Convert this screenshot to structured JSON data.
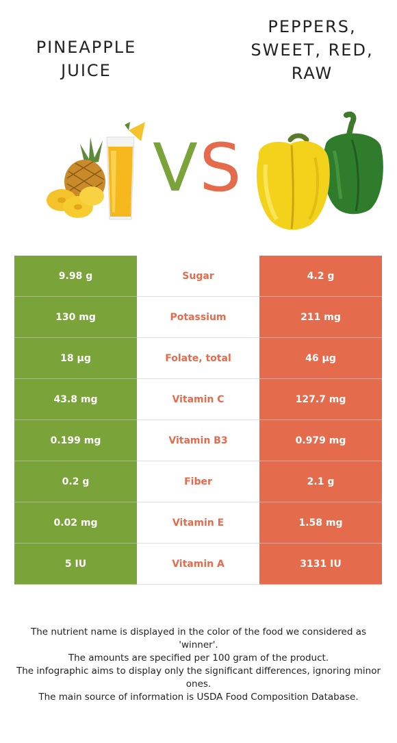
{
  "header": {
    "left_title_line1": "PINEAPPLE",
    "left_title_line2": "JUICE",
    "right_title_line1": "PEPPERS,",
    "right_title_line2": "SWEET, RED,",
    "right_title_line3": "RAW",
    "vs_v": "V",
    "vs_s": "S"
  },
  "colors": {
    "left_food": "#7aa33a",
    "right_food": "#e46b4c"
  },
  "table": {
    "rows": [
      {
        "left": "9.98 g",
        "nutrient": "Sugar",
        "right": "4.2 g",
        "winner": "right"
      },
      {
        "left": "130 mg",
        "nutrient": "Potassium",
        "right": "211 mg",
        "winner": "right"
      },
      {
        "left": "18 µg",
        "nutrient": "Folate, total",
        "right": "46 µg",
        "winner": "right"
      },
      {
        "left": "43.8 mg",
        "nutrient": "Vitamin C",
        "right": "127.7 mg",
        "winner": "right"
      },
      {
        "left": "0.199 mg",
        "nutrient": "Vitamin B3",
        "right": "0.979 mg",
        "winner": "right"
      },
      {
        "left": "0.2 g",
        "nutrient": "Fiber",
        "right": "2.1 g",
        "winner": "right"
      },
      {
        "left": "0.02 mg",
        "nutrient": "Vitamin E",
        "right": "1.58 mg",
        "winner": "right"
      },
      {
        "left": "5 IU",
        "nutrient": "Vitamin A",
        "right": "3131 IU",
        "winner": "right"
      }
    ]
  },
  "footer": {
    "line1": "The nutrient name is displayed in the color of the food we considered as 'winner'.",
    "line2": "The amounts are specified per 100 gram of the product.",
    "line3": "The infographic aims to display only the significant differences, ignoring minor ones.",
    "line4": "The main source of information is USDA Food Composition Database."
  },
  "icons": {
    "left_food_image": "pineapple-juice-illustration",
    "right_food_image": "bell-peppers-illustration"
  }
}
